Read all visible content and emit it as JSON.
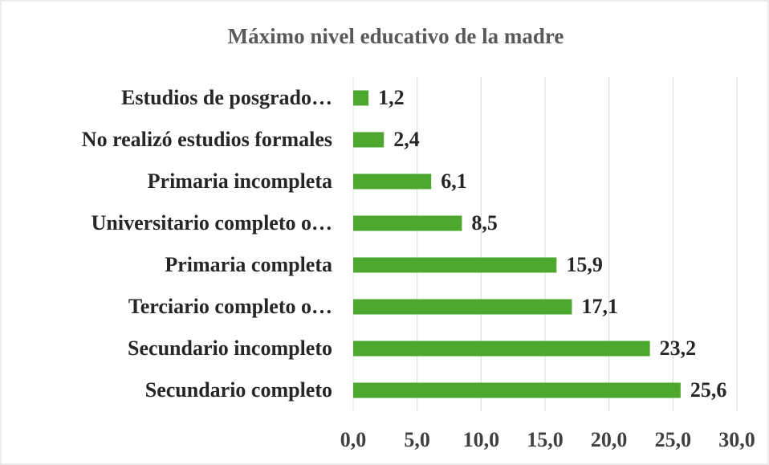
{
  "chart_data": {
    "type": "hbar",
    "title": "Máximo nivel educativo de la madre",
    "categories": [
      "Estudios de posgrado…",
      "No realizó estudios formales",
      "Primaria incompleta",
      "Universitario completo o…",
      "Primaria completa",
      "Terciario completo o…",
      "Secundario incompleto",
      "Secundario completo"
    ],
    "values": [
      1.2,
      2.4,
      6.1,
      8.5,
      15.9,
      17.1,
      23.2,
      25.6
    ],
    "value_labels": [
      "1,2",
      "2,4",
      "6,1",
      "8,5",
      "15,9",
      "17,1",
      "23,2",
      "25,6"
    ],
    "color": "#4ea72e",
    "xlim": [
      0,
      30
    ],
    "xticks": [
      {
        "value": 0,
        "label": "0,0"
      },
      {
        "value": 5,
        "label": "5,0"
      },
      {
        "value": 10,
        "label": "10,0"
      },
      {
        "value": 15,
        "label": "15,0"
      },
      {
        "value": 20,
        "label": "20,0"
      },
      {
        "value": 25,
        "label": "25,0"
      },
      {
        "value": 30,
        "label": "30,0"
      }
    ],
    "grid": true
  }
}
